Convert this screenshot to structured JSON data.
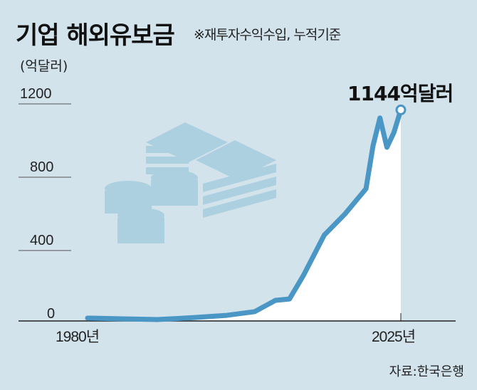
{
  "chart_data": {
    "type": "area",
    "title": "기업 해외유보금",
    "subtitle": "※재투자수익수입, 누적기준",
    "ylabel": "(억달러)",
    "xlabel": "",
    "ylim": [
      0,
      1200
    ],
    "xlim": [
      1980,
      2025
    ],
    "yticks": [
      "0",
      "400",
      "800",
      "1200"
    ],
    "xtick_labels": [
      "1980년",
      "2025년"
    ],
    "x": [
      1980,
      1985,
      1990,
      1995,
      2000,
      2004,
      2007,
      2009,
      2011,
      2014,
      2017,
      2020,
      2021,
      2022,
      2023,
      2024,
      2025
    ],
    "values": [
      8,
      4,
      0,
      10,
      23,
      43,
      105,
      112,
      240,
      461,
      577,
      714,
      947,
      1100,
      940,
      1020,
      1144
    ],
    "annotation": "1144억달러",
    "source": "자료:한국은행",
    "colors": {
      "line": "#4a97c6",
      "background": "#d3e3ec",
      "area": "#ffffff",
      "illustration": "#a9cfe0"
    }
  }
}
